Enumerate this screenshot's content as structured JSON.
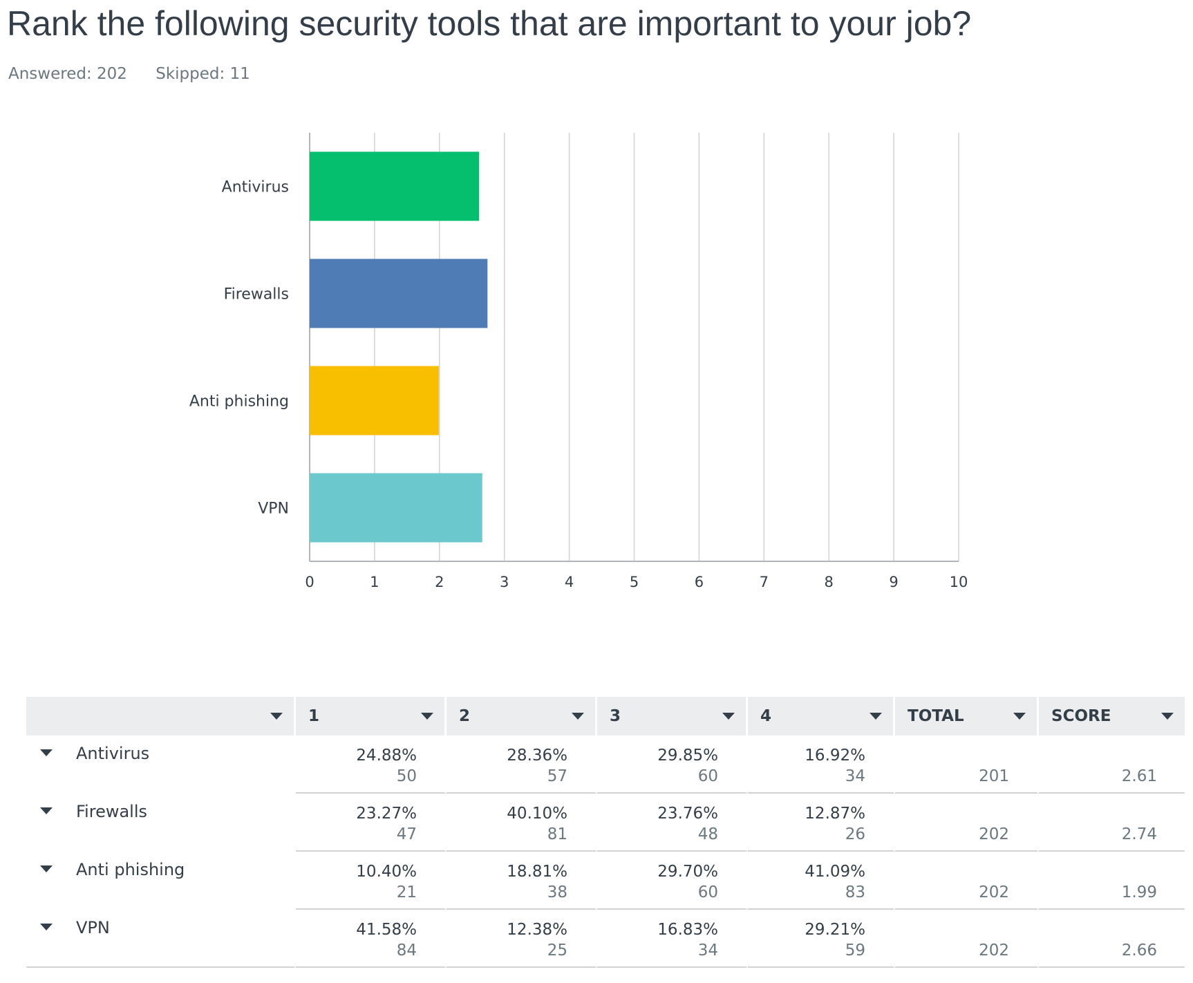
{
  "question": {
    "title": "Rank the following security tools that are important to your job?",
    "answered": "Answered: 202",
    "skipped": "Skipped: 11"
  },
  "colors": {
    "bars": [
      "#05bf6e",
      "#507cb6",
      "#f8be00",
      "#6bc8cd"
    ],
    "grid": "#d0d2d3",
    "axis": "#afb5b8",
    "text": "#333e48",
    "header_bg": "#ebedee"
  },
  "chart_data": {
    "type": "bar",
    "orientation": "horizontal",
    "categories": [
      "Antivirus",
      "Firewalls",
      "Anti phishing",
      "VPN"
    ],
    "values": [
      2.61,
      2.74,
      1.99,
      2.66
    ],
    "xlim": [
      0,
      10
    ],
    "xticks": [
      "0",
      "1",
      "2",
      "3",
      "4",
      "5",
      "6",
      "7",
      "8",
      "9",
      "10"
    ],
    "grid": true,
    "legend": "none"
  },
  "table": {
    "headers": [
      "",
      "1",
      "2",
      "3",
      "4",
      "TOTAL",
      "SCORE"
    ],
    "rows": [
      {
        "label": "Antivirus",
        "cells": [
          {
            "pct": "24.88%",
            "count": "50"
          },
          {
            "pct": "28.36%",
            "count": "57"
          },
          {
            "pct": "29.85%",
            "count": "60"
          },
          {
            "pct": "16.92%",
            "count": "34"
          }
        ],
        "total": "201",
        "score": "2.61"
      },
      {
        "label": "Firewalls",
        "cells": [
          {
            "pct": "23.27%",
            "count": "47"
          },
          {
            "pct": "40.10%",
            "count": "81"
          },
          {
            "pct": "23.76%",
            "count": "48"
          },
          {
            "pct": "12.87%",
            "count": "26"
          }
        ],
        "total": "202",
        "score": "2.74"
      },
      {
        "label": "Anti phishing",
        "cells": [
          {
            "pct": "10.40%",
            "count": "21"
          },
          {
            "pct": "18.81%",
            "count": "38"
          },
          {
            "pct": "29.70%",
            "count": "60"
          },
          {
            "pct": "41.09%",
            "count": "83"
          }
        ],
        "total": "202",
        "score": "1.99"
      },
      {
        "label": "VPN",
        "cells": [
          {
            "pct": "41.58%",
            "count": "84"
          },
          {
            "pct": "12.38%",
            "count": "25"
          },
          {
            "pct": "16.83%",
            "count": "34"
          },
          {
            "pct": "29.21%",
            "count": "59"
          }
        ],
        "total": "202",
        "score": "2.66"
      }
    ]
  }
}
